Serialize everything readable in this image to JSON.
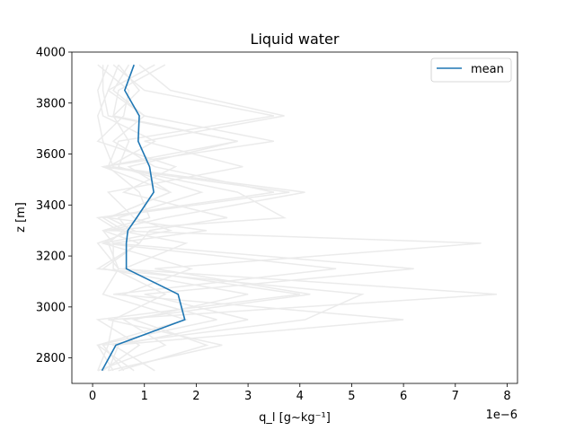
{
  "chart_data": {
    "type": "line",
    "title": "Liquid water",
    "xlabel": "q_l [g~kg⁻¹]",
    "ylabel": "z [m]",
    "x_offset_label": "1e−6",
    "xlim": [
      -0.4,
      8.2
    ],
    "ylim": [
      2700,
      4000
    ],
    "xticks": [
      0,
      1,
      2,
      3,
      4,
      5,
      6,
      7,
      8
    ],
    "yticks": [
      2800,
      3000,
      3200,
      3400,
      3600,
      3800,
      4000
    ],
    "legend": {
      "position": "top-right",
      "entries": [
        "mean"
      ]
    },
    "series": [
      {
        "name": "mean",
        "color": "#1f77b4",
        "x": [
          0.18,
          0.45,
          1.78,
          1.65,
          0.65,
          0.65,
          0.68,
          0.85,
          1.18,
          1.1,
          0.88,
          0.9,
          0.62,
          0.8
        ],
        "y": [
          2750,
          2850,
          2950,
          3050,
          3150,
          3250,
          3300,
          3350,
          3450,
          3550,
          3650,
          3750,
          3850,
          3950
        ]
      }
    ],
    "members": {
      "color": "#ebebeb",
      "lines": [
        {
          "x": [
            0.4,
            0.1,
            1.8,
            0.2,
            0.5,
            0.1,
            0.8,
            0.3,
            1.5,
            0.2,
            2.8,
            0.4,
            0.9,
            0.5
          ],
          "y": [
            2750,
            2850,
            2950,
            3050,
            3150,
            3250,
            3300,
            3350,
            3450,
            3550,
            3650,
            3750,
            3850,
            3950
          ]
        },
        {
          "x": [
            0.6,
            0.2,
            4.1,
            5.2,
            0.1,
            0.9,
            0.2,
            3.7,
            2.8,
            0.4,
            0.2,
            0.1,
            0.3,
            1.2
          ],
          "y": [
            2750,
            2850,
            2950,
            3050,
            3150,
            3250,
            3300,
            3350,
            3450,
            3550,
            3650,
            3750,
            3850,
            3950
          ]
        },
        {
          "x": [
            0.3,
            2.5,
            0.3,
            7.8,
            0.5,
            0.3,
            0.6,
            0.2,
            3.8,
            0.2,
            3.5,
            1.0,
            0.4,
            0.7
          ],
          "y": [
            2750,
            2850,
            2950,
            3050,
            3150,
            3250,
            3300,
            3350,
            3450,
            3550,
            3650,
            3750,
            3850,
            3950
          ]
        },
        {
          "x": [
            1.2,
            0.4,
            6.0,
            0.4,
            4.7,
            0.2,
            1.5,
            0.8,
            0.3,
            2.9,
            1.0,
            3.7,
            1.5,
            0.9
          ],
          "y": [
            2750,
            2850,
            2950,
            3050,
            3150,
            3250,
            3300,
            3350,
            3450,
            3550,
            3650,
            3750,
            3850,
            3950
          ]
        },
        {
          "x": [
            0.1,
            1.4,
            0.6,
            4.2,
            1.2,
            7.5,
            0.3,
            1.4,
            4.1,
            0.3,
            0.5,
            3.5,
            1.0,
            0.4
          ],
          "y": [
            2750,
            2850,
            2950,
            3050,
            3150,
            3250,
            3300,
            3350,
            3450,
            3550,
            3650,
            3750,
            3850,
            3950
          ]
        },
        {
          "x": [
            0.3,
            0.5,
            3.0,
            1.0,
            6.2,
            0.4,
            2.2,
            0.3,
            1.5,
            0.7,
            2.8,
            0.3,
            0.2,
            0.2
          ],
          "y": [
            2750,
            2850,
            2950,
            3050,
            3150,
            3250,
            3300,
            3350,
            3450,
            3550,
            3650,
            3750,
            3850,
            3950
          ]
        },
        {
          "x": [
            0.2,
            0.9,
            0.1,
            4.0,
            0.6,
            1.8,
            0.5,
            0.1,
            3.5,
            1.2,
            0.4,
            1.0,
            0.3,
            0.5
          ],
          "y": [
            2750,
            2850,
            2950,
            3050,
            3150,
            3250,
            3300,
            3350,
            3450,
            3550,
            3650,
            3750,
            3850,
            3950
          ]
        },
        {
          "x": [
            0.5,
            2.2,
            0.8,
            3.0,
            0.2,
            0.9,
            1.1,
            2.6,
            0.6,
            1.6,
            0.1,
            0.6,
            0.7,
            0.1
          ],
          "y": [
            2750,
            2850,
            2950,
            3050,
            3150,
            3250,
            3300,
            3350,
            3450,
            3550,
            3650,
            3750,
            3850,
            3950
          ]
        },
        {
          "x": [
            0.1,
            0.3,
            0.4,
            1.4,
            0.4,
            0.4,
            0.2,
            1.1,
            0.9,
            0.3,
            1.2,
            0.2,
            0.1,
            0.3
          ],
          "y": [
            2750,
            2850,
            2950,
            3050,
            3150,
            3250,
            3300,
            3350,
            3450,
            3550,
            3650,
            3750,
            3850,
            3950
          ]
        },
        {
          "x": [
            0.8,
            0.1,
            2.4,
            0.6,
            1.9,
            0.2,
            0.7,
            0.5,
            2.1,
            0.5,
            0.7,
            0.4,
            0.5,
            1.4
          ],
          "y": [
            2750,
            2850,
            2950,
            3050,
            3150,
            3250,
            3300,
            3350,
            3450,
            3550,
            3650,
            3750,
            3850,
            3950
          ]
        }
      ]
    }
  }
}
